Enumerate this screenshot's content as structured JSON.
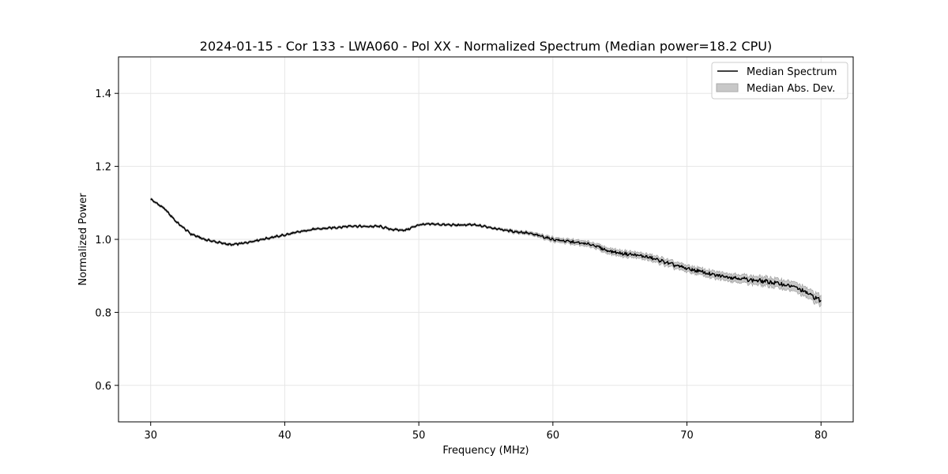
{
  "chart_data": {
    "type": "line",
    "title": "2024-01-15 - Cor 133 - LWA060 - Pol XX - Normalized Spectrum (Median power=18.2 CPU)",
    "xlabel": "Frequency (MHz)",
    "ylabel": "Normalized Power",
    "xlim": [
      27.6,
      82.4
    ],
    "ylim": [
      0.5,
      1.5
    ],
    "xticks": [
      30,
      40,
      50,
      60,
      70,
      80
    ],
    "yticks": [
      0.6,
      0.8,
      1.0,
      1.2,
      1.4
    ],
    "xtick_labels": [
      "30",
      "40",
      "50",
      "60",
      "70",
      "80"
    ],
    "ytick_labels": [
      "0.6",
      "0.8",
      "1.0",
      "1.2",
      "1.4"
    ],
    "grid": true,
    "legend_position": "top-right",
    "series": [
      {
        "name": "Median Spectrum",
        "color": "#000000",
        "x": [
          30,
          31,
          32,
          33,
          34,
          35,
          36,
          37,
          38,
          39,
          40,
          41,
          42,
          43,
          44,
          45,
          46,
          47,
          48,
          49,
          50,
          51,
          52,
          53,
          54,
          55,
          56,
          57,
          58,
          59,
          60,
          61,
          62,
          63,
          64,
          65,
          66,
          67,
          68,
          69,
          70,
          71,
          72,
          73,
          74,
          75,
          76,
          77,
          78,
          79,
          80
        ],
        "values": [
          1.11,
          1.085,
          1.045,
          1.015,
          1.0,
          0.992,
          0.985,
          0.99,
          0.998,
          1.005,
          1.012,
          1.02,
          1.027,
          1.03,
          1.033,
          1.037,
          1.035,
          1.036,
          1.027,
          1.025,
          1.04,
          1.042,
          1.04,
          1.039,
          1.04,
          1.035,
          1.028,
          1.022,
          1.018,
          1.01,
          1.0,
          0.995,
          0.99,
          0.985,
          0.97,
          0.962,
          0.958,
          0.952,
          0.942,
          0.93,
          0.92,
          0.912,
          0.902,
          0.898,
          0.893,
          0.888,
          0.884,
          0.878,
          0.87,
          0.852,
          0.832
        ],
        "mad": [
          0.003,
          0.003,
          0.003,
          0.003,
          0.003,
          0.003,
          0.003,
          0.003,
          0.003,
          0.003,
          0.003,
          0.003,
          0.003,
          0.003,
          0.003,
          0.003,
          0.003,
          0.003,
          0.003,
          0.003,
          0.003,
          0.003,
          0.003,
          0.003,
          0.003,
          0.003,
          0.003,
          0.004,
          0.004,
          0.005,
          0.006,
          0.006,
          0.007,
          0.007,
          0.008,
          0.008,
          0.008,
          0.008,
          0.009,
          0.009,
          0.009,
          0.009,
          0.01,
          0.01,
          0.011,
          0.011,
          0.012,
          0.012,
          0.013,
          0.013,
          0.014
        ]
      }
    ],
    "legend": [
      "Median Spectrum",
      "Median Abs. Dev."
    ],
    "band_color": "#bbbbbb",
    "band_edge_color": "#999999"
  }
}
